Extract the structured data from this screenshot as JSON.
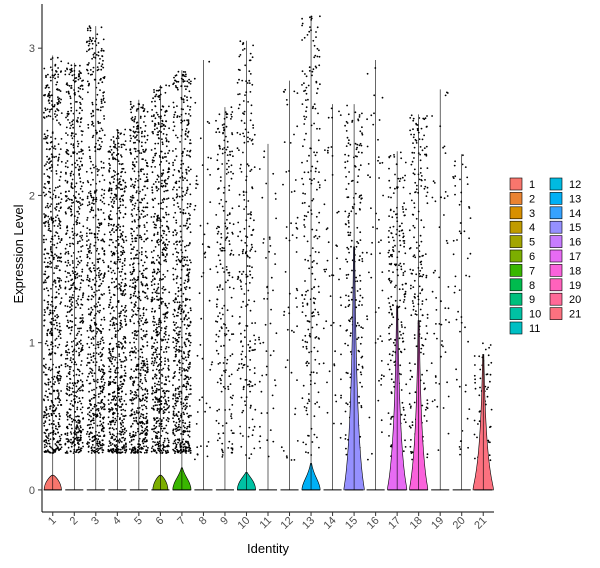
{
  "chart_data": {
    "type": "violin",
    "title": "",
    "xlabel": "Identity",
    "ylabel": "Expression Level",
    "ylim": [
      -0.15,
      3.3
    ],
    "y_ticks": [
      0,
      1,
      2,
      3
    ],
    "categories": [
      "1",
      "2",
      "3",
      "4",
      "5",
      "6",
      "7",
      "8",
      "9",
      "10",
      "11",
      "12",
      "13",
      "14",
      "15",
      "16",
      "17",
      "18",
      "19",
      "20",
      "21"
    ],
    "colors": [
      "#F8766D",
      "#EA8331",
      "#D89000",
      "#C09B00",
      "#A3A500",
      "#7CAE00",
      "#39B600",
      "#00BB4E",
      "#00BF7D",
      "#00C1A3",
      "#00BFC4",
      "#00BAE0",
      "#00B0F6",
      "#35A2FF",
      "#9590FF",
      "#C77CFF",
      "#E76BF3",
      "#FA62DB",
      "#FF62BC",
      "#FF6A98",
      "#FC717F"
    ],
    "legend": {
      "position": "right",
      "columns": [
        [
          "1",
          "2",
          "3",
          "4",
          "5",
          "6",
          "7",
          "8",
          "9",
          "10",
          "11"
        ],
        [
          "12",
          "13",
          "14",
          "15",
          "16",
          "17",
          "18",
          "19",
          "20",
          "21"
        ]
      ]
    },
    "groups": [
      {
        "name": "1",
        "max": 2.95,
        "density": "high",
        "violin_height": 0.1,
        "violin_width": 0.8
      },
      {
        "name": "2",
        "max": 2.9,
        "density": "high",
        "violin_height": 0.0,
        "violin_width": 0.0
      },
      {
        "name": "3",
        "max": 3.15,
        "density": "high",
        "violin_height": 0.0,
        "violin_width": 0.0
      },
      {
        "name": "4",
        "max": 2.45,
        "density": "high",
        "violin_height": 0.0,
        "violin_width": 0.0
      },
      {
        "name": "5",
        "max": 2.65,
        "density": "high",
        "violin_height": 0.0,
        "violin_width": 0.0
      },
      {
        "name": "6",
        "max": 2.75,
        "density": "high",
        "violin_height": 0.1,
        "violin_width": 0.7
      },
      {
        "name": "7",
        "max": 2.85,
        "density": "high",
        "violin_height": 0.15,
        "violin_width": 0.85
      },
      {
        "name": "8",
        "max": 2.92,
        "density": "low",
        "violin_height": 0.0,
        "violin_width": 0.0
      },
      {
        "name": "9",
        "max": 2.6,
        "density": "medium",
        "violin_height": 0.0,
        "violin_width": 0.0
      },
      {
        "name": "10",
        "max": 3.05,
        "density": "medium",
        "violin_height": 0.12,
        "violin_width": 0.85
      },
      {
        "name": "11",
        "max": 2.35,
        "density": "low",
        "violin_height": 0.0,
        "violin_width": 0.0
      },
      {
        "name": "12",
        "max": 2.78,
        "density": "low",
        "violin_height": 0.0,
        "violin_width": 0.0
      },
      {
        "name": "13",
        "max": 3.22,
        "density": "medium",
        "violin_height": 0.18,
        "violin_width": 0.85
      },
      {
        "name": "14",
        "max": 2.62,
        "density": "low",
        "violin_height": 0.0,
        "violin_width": 0.0
      },
      {
        "name": "15",
        "max": 2.62,
        "density": "medium",
        "violin_height": 1.65,
        "violin_width": 0.95
      },
      {
        "name": "16",
        "max": 2.92,
        "density": "low",
        "violin_height": 0.0,
        "violin_width": 0.0
      },
      {
        "name": "17",
        "max": 2.3,
        "density": "medium",
        "violin_height": 1.25,
        "violin_width": 0.9
      },
      {
        "name": "18",
        "max": 2.55,
        "density": "medium",
        "violin_height": 1.15,
        "violin_width": 0.85
      },
      {
        "name": "19",
        "max": 2.72,
        "density": "low",
        "violin_height": 0.0,
        "violin_width": 0.0
      },
      {
        "name": "20",
        "max": 2.28,
        "density": "low",
        "violin_height": 0.0,
        "violin_width": 0.0
      },
      {
        "name": "21",
        "max": 0.92,
        "density": "low",
        "violin_height": 0.92,
        "violin_width": 0.95
      }
    ]
  }
}
